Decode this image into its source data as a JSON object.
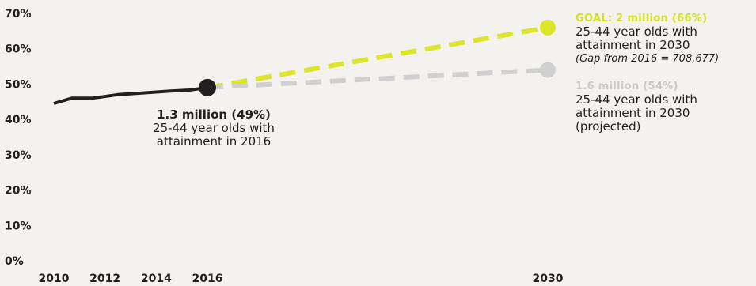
{
  "chart_data": {
    "type": "line",
    "y_ticks": [
      "70%",
      "60%",
      "50%",
      "40%",
      "30%",
      "20%",
      "10%",
      "0%"
    ],
    "y_tick_values": [
      70,
      60,
      50,
      40,
      30,
      20,
      10,
      0
    ],
    "x_ticks": [
      "2010",
      "2012",
      "2014",
      "2016",
      "2030"
    ],
    "x_tick_values": [
      2010,
      2012,
      2014,
      2016,
      2030
    ],
    "ylim": [
      0,
      70
    ],
    "grid": false,
    "colors": {
      "actual": "#231f20",
      "goal": "#dde52c",
      "projected": "#d0d0d0"
    },
    "series": [
      {
        "key": "actual",
        "style": "solid",
        "x": [
          2010,
          2010.7,
          2011.5,
          2012.5,
          2013.5,
          2014.5,
          2015.3,
          2016
        ],
        "y": [
          44.5,
          46,
          46,
          47,
          47.5,
          48,
          48.3,
          49
        ]
      },
      {
        "key": "goal",
        "style": "dashed",
        "x": [
          2016,
          2030
        ],
        "y": [
          49,
          66
        ]
      },
      {
        "key": "projected",
        "style": "dashed",
        "x": [
          2016,
          2030
        ],
        "y": [
          49,
          54
        ]
      }
    ],
    "markers": [
      {
        "key": "actual",
        "x": 2016,
        "y": 49
      },
      {
        "key": "goal",
        "x": 2030,
        "y": 66
      },
      {
        "key": "projected",
        "x": 2030,
        "y": 54
      }
    ],
    "annotations": {
      "current": {
        "headline": "1.3 million (49%)",
        "line1": "25-44 year olds with",
        "line2": "attainment in 2016"
      },
      "goal": {
        "headline": "GOAL: 2 million (66%)",
        "line1": "25-44 year olds with",
        "line2": "attainment in 2030",
        "gap": "(Gap from 2016 = 708,677)"
      },
      "projected": {
        "headline": "1.6 million (54%)",
        "line1": "25-44 year olds with",
        "line2": "attainment in 2030",
        "line3": "(projected)"
      }
    }
  }
}
